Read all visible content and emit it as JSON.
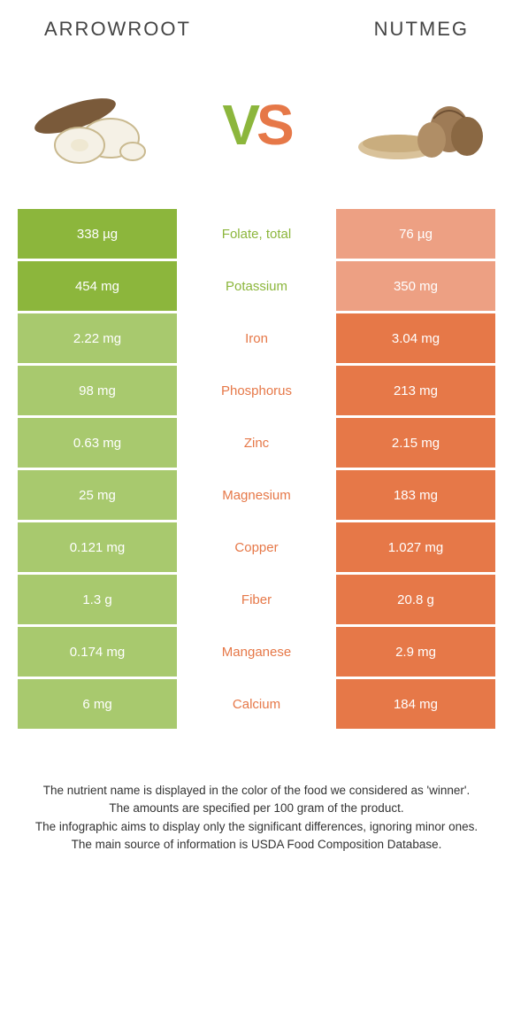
{
  "colors": {
    "left": "#8cb63c",
    "right": "#e67848",
    "mid_bg": "#ffffff",
    "left_dim": "#a8c96e",
    "right_dim": "#eda083"
  },
  "header": {
    "left": "Arrowroot",
    "right": "Nutmeg",
    "vs_v": "V",
    "vs_s": "S"
  },
  "rows": [
    {
      "left": "338 µg",
      "label": "Folate, total",
      "right": "76 µg",
      "winner": "left"
    },
    {
      "left": "454 mg",
      "label": "Potassium",
      "right": "350 mg",
      "winner": "left"
    },
    {
      "left": "2.22 mg",
      "label": "Iron",
      "right": "3.04 mg",
      "winner": "right"
    },
    {
      "left": "98 mg",
      "label": "Phosphorus",
      "right": "213 mg",
      "winner": "right"
    },
    {
      "left": "0.63 mg",
      "label": "Zinc",
      "right": "2.15 mg",
      "winner": "right"
    },
    {
      "left": "25 mg",
      "label": "Magnesium",
      "right": "183 mg",
      "winner": "right"
    },
    {
      "left": "0.121 mg",
      "label": "Copper",
      "right": "1.027 mg",
      "winner": "right"
    },
    {
      "left": "1.3 g",
      "label": "Fiber",
      "right": "20.8 g",
      "winner": "right"
    },
    {
      "left": "0.174 mg",
      "label": "Manganese",
      "right": "2.9 mg",
      "winner": "right"
    },
    {
      "left": "6 mg",
      "label": "Calcium",
      "right": "184 mg",
      "winner": "right"
    }
  ],
  "footnote": {
    "l1": "The nutrient name is displayed in the color of the food we considered as 'winner'.",
    "l2": "The amounts are specified per 100 gram of the product.",
    "l3": "The infographic aims to display only the significant differences, ignoring minor ones.",
    "l4": "The main source of information is USDA Food Composition Database."
  }
}
